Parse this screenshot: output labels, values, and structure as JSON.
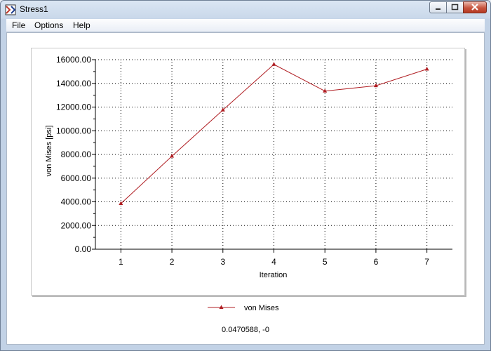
{
  "window": {
    "title": "Stress1"
  },
  "menu": {
    "items": [
      "File",
      "Options",
      "Help"
    ]
  },
  "status": {
    "coordinates": "0.0470588, -0"
  },
  "colors": {
    "series": "#b01e23"
  },
  "chart_data": {
    "type": "line",
    "x": [
      1,
      2,
      3,
      4,
      5,
      6,
      7
    ],
    "series": [
      {
        "name": "von Mises",
        "values": [
          3850,
          7850,
          11750,
          15600,
          13350,
          13800,
          15200
        ]
      }
    ],
    "xlabel": "Iteration",
    "ylabel": "von Mises [psi]",
    "xlim": [
      0.5,
      7.5
    ],
    "ylim": [
      0,
      16000
    ],
    "x_ticks": [
      "1",
      "2",
      "3",
      "4",
      "5",
      "6",
      "7"
    ],
    "y_ticks": [
      "0.00",
      "2000.00",
      "4000.00",
      "6000.00",
      "8000.00",
      "10000.00",
      "12000.00",
      "14000.00",
      "16000.00"
    ],
    "grid": true,
    "legend": "bottom-center"
  }
}
